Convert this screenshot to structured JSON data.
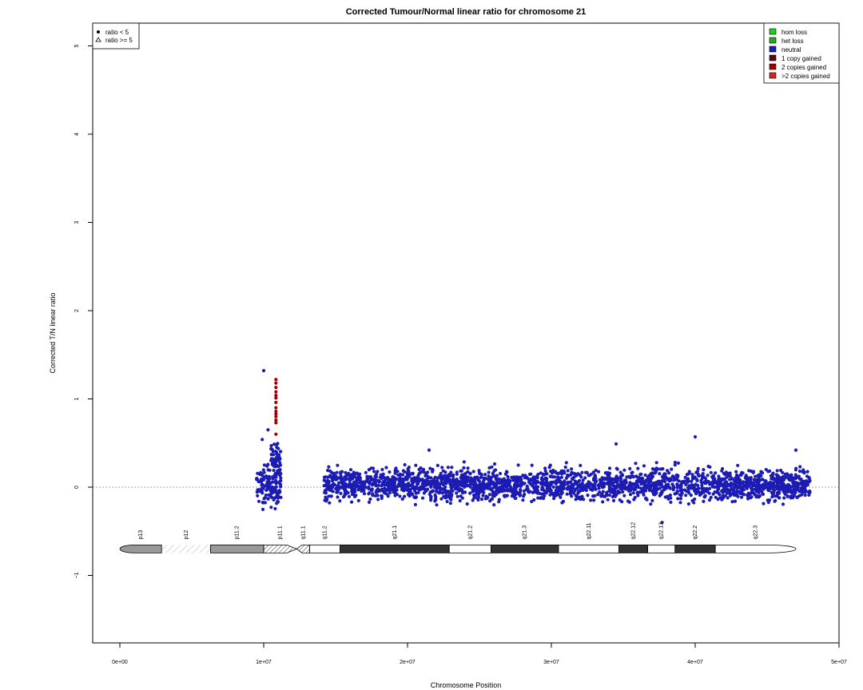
{
  "chart_data": {
    "type": "scatter",
    "title": "Corrected Tumour/Normal linear ratio for chromosome  21",
    "xlabel": "Chromosome Position",
    "ylabel": "Corrected T/N linear ratio",
    "xlim": [
      -1000000,
      50000000
    ],
    "ylim": [
      -1.75,
      5.3
    ],
    "x_ticks": [
      0,
      10000000,
      20000000,
      30000000,
      40000000,
      50000000
    ],
    "x_tick_labels": [
      "0e+00",
      "1e+07",
      "2e+07",
      "3e+07",
      "4e+07",
      "5e+07"
    ],
    "y_ticks": [
      -1,
      0,
      1,
      2,
      3,
      4,
      5
    ],
    "y_tick_labels": [
      "−1",
      "0",
      "1",
      "2",
      "3",
      "4",
      "5"
    ],
    "reference_line_y": 0,
    "grid": false,
    "symbol_legend": {
      "placement": "top-left",
      "entries": [
        {
          "symbol": "circle",
          "label": "ratio < 5"
        },
        {
          "symbol": "triangle",
          "label": "ratio >= 5"
        }
      ]
    },
    "state_legend": {
      "placement": "top-right",
      "entries": [
        {
          "label": "hom loss",
          "color": "#22cc22"
        },
        {
          "label": "het loss",
          "color": "#22aa22"
        },
        {
          "label": "neutral",
          "color": "#1c1cb4"
        },
        {
          "label": "1 copy gained",
          "color": "#5a0a0a"
        },
        {
          "label": "2 copies gained",
          "color": "#a00000"
        },
        {
          "label": ">2 copies gained",
          "color": "#dd2222"
        }
      ]
    },
    "series": [
      {
        "state": "neutral",
        "color": "#1c1cb4",
        "description_of_distribution": "dense cloud",
        "clusters": [
          {
            "x_range": [
              9500000,
              11200000
            ],
            "y_center": 0.0,
            "y_spread": 0.35
          },
          {
            "x_range": [
              14200000,
              48000000
            ],
            "y_center": 0.03,
            "y_spread": 0.28
          }
        ],
        "notable_points": [
          {
            "x": 10000000,
            "y": 1.32
          },
          {
            "x": 10300000,
            "y": 0.65
          },
          {
            "x": 9900000,
            "y": 0.54
          },
          {
            "x": 21500000,
            "y": 0.42
          },
          {
            "x": 34500000,
            "y": 0.49
          },
          {
            "x": 40000000,
            "y": 0.57
          },
          {
            "x": 47000000,
            "y": 0.42
          },
          {
            "x": 37700000,
            "y": -0.4
          }
        ]
      },
      {
        "state": "2 copies gained",
        "color": "#a00000",
        "points": [
          {
            "x": 10850000,
            "y": 1.22
          },
          {
            "x": 10850000,
            "y": 1.18
          },
          {
            "x": 10850000,
            "y": 1.13
          },
          {
            "x": 10850000,
            "y": 1.08
          },
          {
            "x": 10850000,
            "y": 1.04
          },
          {
            "x": 10850000,
            "y": 1.01
          },
          {
            "x": 10850000,
            "y": 0.96
          },
          {
            "x": 10850000,
            "y": 0.9
          },
          {
            "x": 10850000,
            "y": 0.86
          },
          {
            "x": 10850000,
            "y": 0.83
          },
          {
            "x": 10850000,
            "y": 0.8
          },
          {
            "x": 10850000,
            "y": 0.76
          },
          {
            "x": 10850000,
            "y": 0.73
          },
          {
            "x": 10850000,
            "y": 0.6
          }
        ]
      }
    ],
    "ideogram": {
      "y_position": -0.7,
      "bands": [
        {
          "name": "p13",
          "start": 0,
          "end": 2900000,
          "fill": "gray",
          "shape": "left-cap"
        },
        {
          "name": "p12",
          "start": 2900000,
          "end": 6300000,
          "fill": "stalk"
        },
        {
          "name": "p11.2",
          "start": 6300000,
          "end": 10000000,
          "fill": "gray"
        },
        {
          "name": "p11.1",
          "start": 10000000,
          "end": 12300000,
          "fill": "hatched",
          "shape": "centromere-left"
        },
        {
          "name": "q11.1",
          "start": 12300000,
          "end": 13200000,
          "fill": "hatched",
          "shape": "centromere-right"
        },
        {
          "name": "q11.2",
          "start": 13200000,
          "end": 15300000,
          "fill": "white"
        },
        {
          "name": "q21.1",
          "start": 15300000,
          "end": 22900000,
          "fill": "black"
        },
        {
          "name": "q21.2",
          "start": 22900000,
          "end": 25800000,
          "fill": "white"
        },
        {
          "name": "q21.3",
          "start": 25800000,
          "end": 30500000,
          "fill": "black"
        },
        {
          "name": "q22.11",
          "start": 30500000,
          "end": 34700000,
          "fill": "white"
        },
        {
          "name": "q22.12",
          "start": 34700000,
          "end": 36700000,
          "fill": "black"
        },
        {
          "name": "q22.13",
          "start": 36700000,
          "end": 38600000,
          "fill": "white"
        },
        {
          "name": "q22.2",
          "start": 38600000,
          "end": 41400000,
          "fill": "black"
        },
        {
          "name": "q22.3",
          "start": 41400000,
          "end": 47000000,
          "fill": "white",
          "shape": "right-cap"
        }
      ]
    }
  }
}
